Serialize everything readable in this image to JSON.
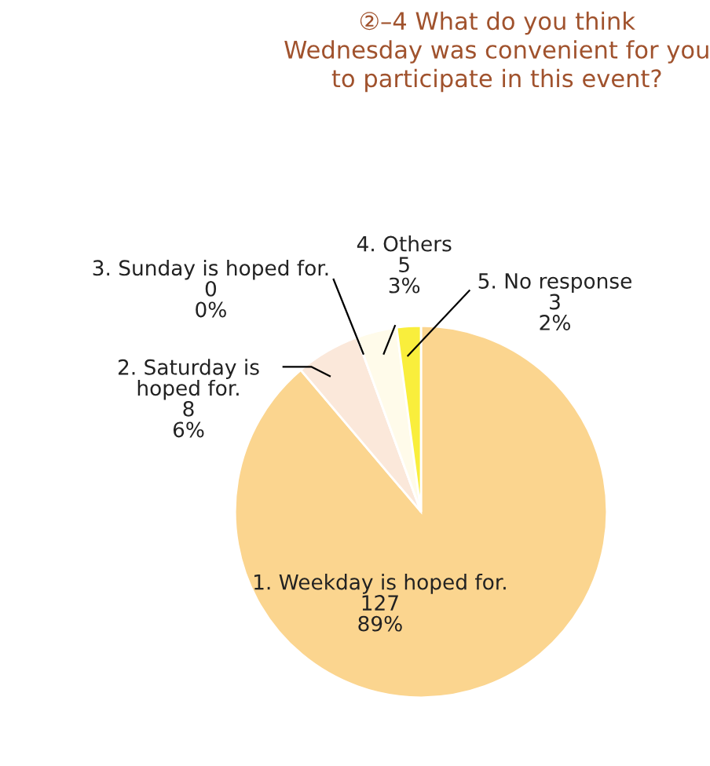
{
  "chart_data": {
    "type": "pie",
    "title": "②–4 What do you think\nWednesday was convenient for you\nto participate in this event?",
    "categories": [
      "1. Weekday is hoped for.",
      "2. Saturday is\nhoped for.",
      "3. Sunday is hoped for.",
      "4. Others",
      "5. No response"
    ],
    "values": [
      127,
      8,
      0,
      5,
      3
    ],
    "value_labels": [
      "127\n89%",
      "8\n6%",
      "0\n0%",
      "5\n3%",
      "3\n2%"
    ],
    "colors": [
      "#fbd58f",
      "#fbe8da",
      "#fdf2d8",
      "#fffbea",
      "#f9ee3c"
    ],
    "legend": false
  }
}
